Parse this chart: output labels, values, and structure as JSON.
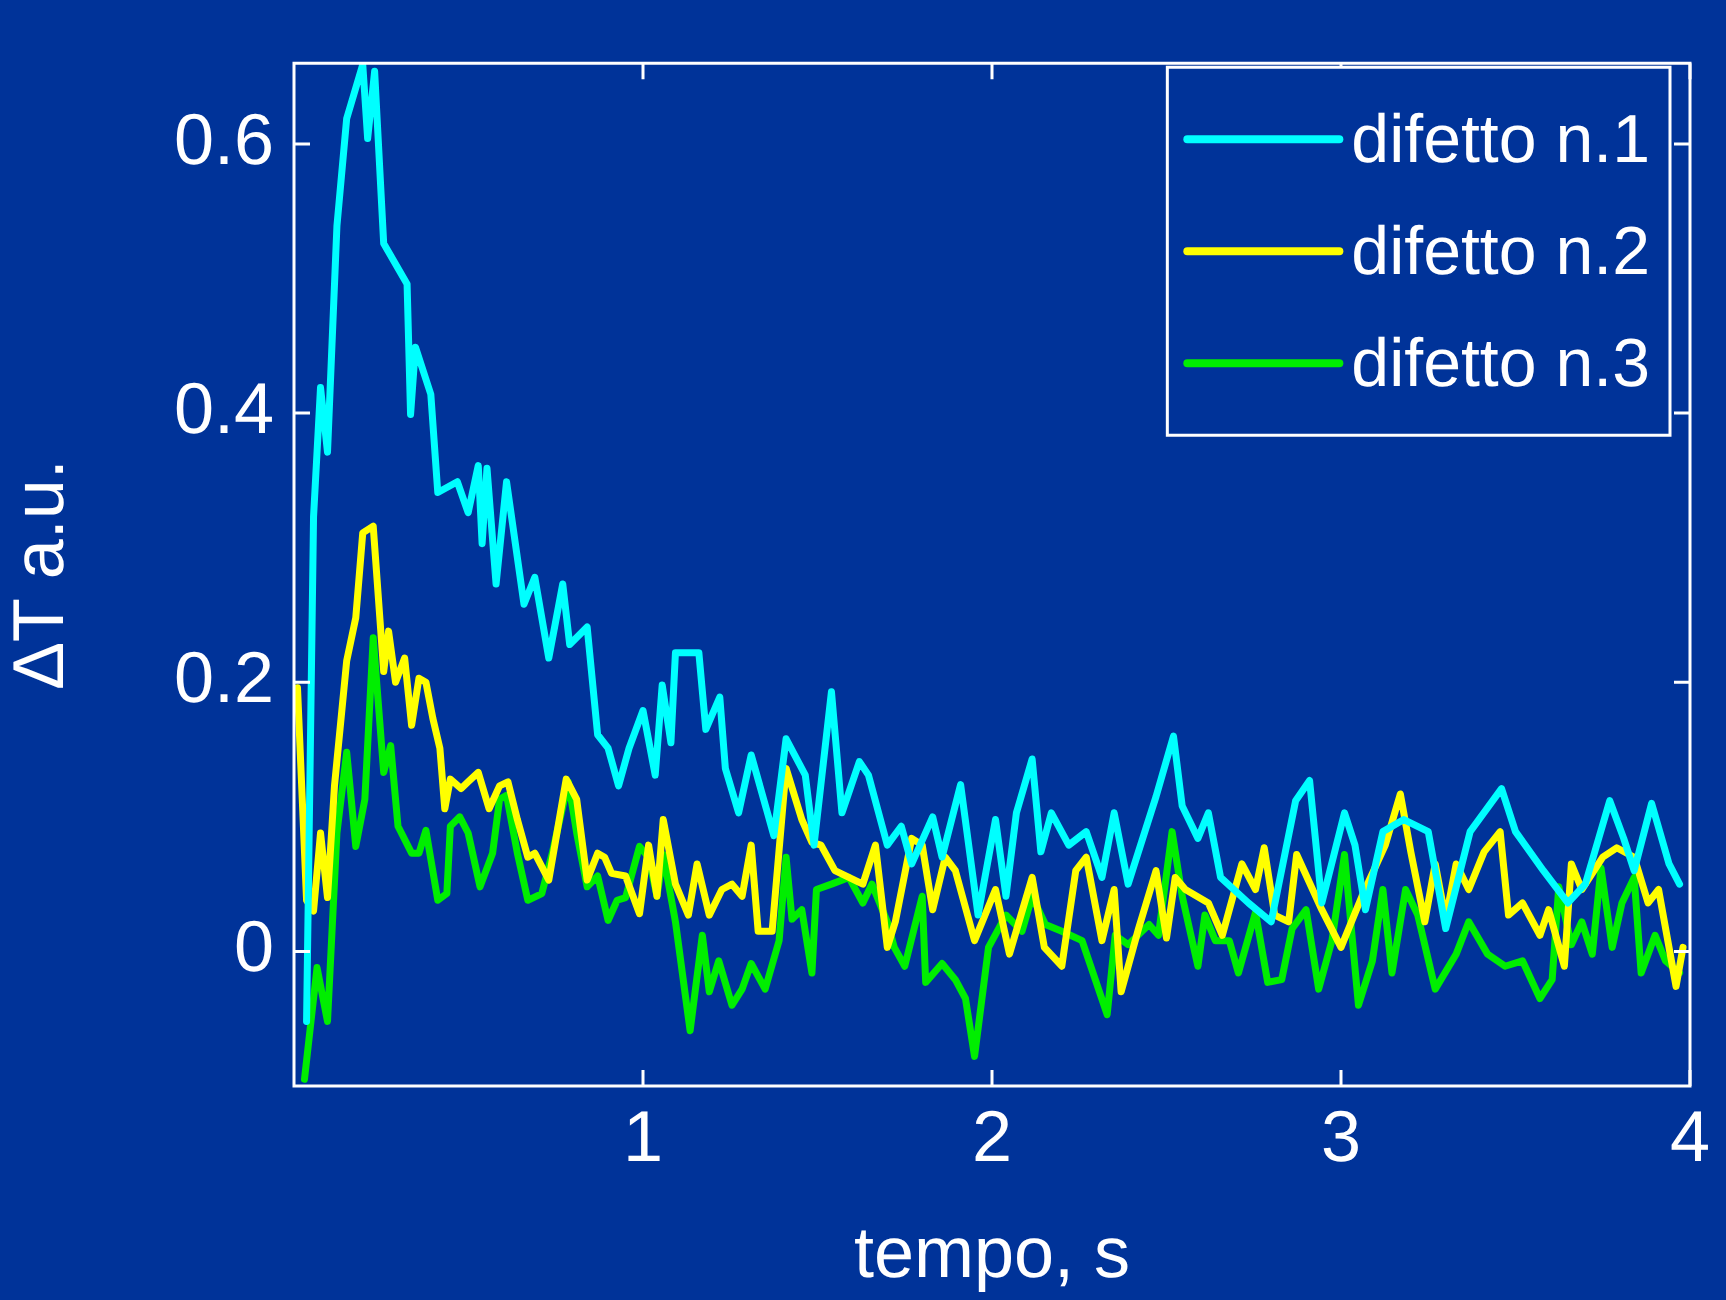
{
  "chart_data": {
    "type": "line",
    "xlabel": "tempo, s",
    "ylabel": "ΔT a.u.",
    "xlim": [
      0,
      4
    ],
    "ylim": [
      -0.1,
      0.66
    ],
    "xticks": [
      1,
      2,
      3,
      4
    ],
    "yticks": [
      0,
      0.2,
      0.4,
      0.6
    ],
    "grid": false,
    "legend": "top right",
    "marker": "none",
    "line_style": "solid",
    "series": [
      {
        "name": "difetto n.1",
        "color": "#00ffff",
        "x": [
          0.036,
          0.056,
          0.076,
          0.096,
          0.123,
          0.151,
          0.197,
          0.211,
          0.231,
          0.257,
          0.324,
          0.334,
          0.348,
          0.392,
          0.412,
          0.468,
          0.499,
          0.528,
          0.539,
          0.553,
          0.579,
          0.609,
          0.659,
          0.69,
          0.73,
          0.77,
          0.79,
          0.84,
          0.87,
          0.9,
          0.93,
          0.96,
          1.0,
          1.035,
          1.055,
          1.08,
          1.093,
          1.16,
          1.18,
          1.22,
          1.236,
          1.274,
          1.31,
          1.375,
          1.41,
          1.465,
          1.49,
          1.54,
          1.57,
          1.62,
          1.646,
          1.7,
          1.74,
          1.77,
          1.83,
          1.857,
          1.91,
          1.96,
          2.01,
          2.04,
          2.07,
          2.115,
          2.14,
          2.17,
          2.22,
          2.27,
          2.315,
          2.35,
          2.39,
          2.47,
          2.52,
          2.545,
          2.59,
          2.62,
          2.655,
          2.735,
          2.8,
          2.87,
          2.91,
          2.945,
          3.01,
          3.04,
          3.07,
          3.12,
          3.18,
          3.25,
          3.3,
          3.37,
          3.46,
          3.5,
          3.58,
          3.65,
          3.7,
          3.77,
          3.81,
          3.84,
          3.89,
          3.94,
          3.97
        ],
        "values": [
          -0.052,
          0.323,
          0.419,
          0.371,
          0.539,
          0.619,
          0.659,
          0.604,
          0.654,
          0.526,
          0.496,
          0.399,
          0.449,
          0.414,
          0.341,
          0.349,
          0.326,
          0.361,
          0.303,
          0.359,
          0.273,
          0.349,
          0.258,
          0.278,
          0.218,
          0.273,
          0.228,
          0.241,
          0.161,
          0.151,
          0.123,
          0.151,
          0.179,
          0.131,
          0.198,
          0.155,
          0.222,
          0.222,
          0.165,
          0.189,
          0.136,
          0.103,
          0.146,
          0.086,
          0.158,
          0.131,
          0.079,
          0.193,
          0.103,
          0.141,
          0.131,
          0.079,
          0.093,
          0.065,
          0.1,
          0.07,
          0.124,
          0.027,
          0.098,
          0.041,
          0.103,
          0.143,
          0.074,
          0.103,
          0.079,
          0.089,
          0.055,
          0.103,
          0.05,
          0.115,
          0.16,
          0.108,
          0.084,
          0.103,
          0.055,
          0.036,
          0.022,
          0.112,
          0.127,
          0.036,
          0.103,
          0.079,
          0.031,
          0.089,
          0.098,
          0.089,
          0.017,
          0.089,
          0.121,
          0.089,
          0.06,
          0.036,
          0.05,
          0.112,
          0.084,
          0.06,
          0.11,
          0.065,
          0.05
        ]
      },
      {
        "name": "difetto n.2",
        "color": "#ffff00",
        "x": [
          0.01,
          0.036,
          0.056,
          0.076,
          0.096,
          0.116,
          0.151,
          0.177,
          0.197,
          0.227,
          0.257,
          0.271,
          0.291,
          0.317,
          0.337,
          0.358,
          0.378,
          0.398,
          0.418,
          0.432,
          0.448,
          0.479,
          0.499,
          0.528,
          0.559,
          0.589,
          0.613,
          0.64,
          0.67,
          0.69,
          0.73,
          0.78,
          0.81,
          0.84,
          0.87,
          0.89,
          0.91,
          0.95,
          0.99,
          1.016,
          1.04,
          1.058,
          1.093,
          1.13,
          1.155,
          1.19,
          1.226,
          1.255,
          1.284,
          1.31,
          1.33,
          1.37,
          1.41,
          1.455,
          1.484,
          1.51,
          1.55,
          1.63,
          1.666,
          1.7,
          1.723,
          1.77,
          1.8,
          1.83,
          1.866,
          1.895,
          1.95,
          2.01,
          2.05,
          2.115,
          2.15,
          2.2,
          2.24,
          2.27,
          2.315,
          2.35,
          2.37,
          2.42,
          2.47,
          2.5,
          2.525,
          2.554,
          2.62,
          2.66,
          2.716,
          2.755,
          2.78,
          2.81,
          2.85,
          2.873,
          2.945,
          3.0,
          3.06,
          3.127,
          3.17,
          3.2,
          3.24,
          3.27,
          3.3,
          3.33,
          3.366,
          3.41,
          3.456,
          3.48,
          3.52,
          3.57,
          3.595,
          3.64,
          3.66,
          3.69,
          3.75,
          3.79,
          3.84,
          3.88,
          3.91,
          3.96,
          3.98
        ],
        "values": [
          0.196,
          0.038,
          0.03,
          0.088,
          0.04,
          0.123,
          0.216,
          0.248,
          0.311,
          0.316,
          0.208,
          0.238,
          0.2,
          0.218,
          0.168,
          0.203,
          0.2,
          0.173,
          0.151,
          0.106,
          0.128,
          0.121,
          0.126,
          0.133,
          0.106,
          0.123,
          0.126,
          0.098,
          0.07,
          0.073,
          0.053,
          0.128,
          0.113,
          0.053,
          0.073,
          0.07,
          0.058,
          0.056,
          0.028,
          0.079,
          0.041,
          0.098,
          0.05,
          0.027,
          0.065,
          0.027,
          0.046,
          0.05,
          0.041,
          0.079,
          0.015,
          0.015,
          0.136,
          0.098,
          0.081,
          0.079,
          0.06,
          0.05,
          0.079,
          0.003,
          0.022,
          0.084,
          0.079,
          0.031,
          0.07,
          0.06,
          0.008,
          0.046,
          -0.002,
          0.055,
          0.003,
          -0.011,
          0.06,
          0.07,
          0.008,
          0.046,
          -0.03,
          0.017,
          0.06,
          0.01,
          0.055,
          0.046,
          0.036,
          0.012,
          0.065,
          0.046,
          0.077,
          0.027,
          0.022,
          0.072,
          0.031,
          0.003,
          0.041,
          0.079,
          0.117,
          0.074,
          0.022,
          0.065,
          0.024,
          0.065,
          0.046,
          0.074,
          0.089,
          0.027,
          0.036,
          0.012,
          0.031,
          -0.011,
          0.065,
          0.046,
          0.07,
          0.077,
          0.07,
          0.036,
          0.046,
          -0.026,
          0.003
        ]
      },
      {
        "name": "difetto n.3",
        "color": "#00ee00",
        "x": [
          0.03,
          0.066,
          0.096,
          0.123,
          0.151,
          0.177,
          0.203,
          0.227,
          0.257,
          0.277,
          0.298,
          0.337,
          0.358,
          0.378,
          0.412,
          0.438,
          0.448,
          0.475,
          0.499,
          0.533,
          0.569,
          0.589,
          0.609,
          0.64,
          0.67,
          0.71,
          0.74,
          0.786,
          0.81,
          0.84,
          0.87,
          0.9,
          0.926,
          0.95,
          0.99,
          1.016,
          1.04,
          1.058,
          1.093,
          1.135,
          1.17,
          1.19,
          1.217,
          1.255,
          1.284,
          1.31,
          1.35,
          1.39,
          1.41,
          1.427,
          1.455,
          1.484,
          1.497,
          1.54,
          1.59,
          1.63,
          1.656,
          1.7,
          1.72,
          1.75,
          1.8,
          1.81,
          1.857,
          1.895,
          1.924,
          1.95,
          1.99,
          2.04,
          2.086,
          2.115,
          2.153,
          2.2,
          2.258,
          2.296,
          2.33,
          2.353,
          2.39,
          2.45,
          2.477,
          2.516,
          2.545,
          2.59,
          2.61,
          2.64,
          2.68,
          2.706,
          2.755,
          2.79,
          2.83,
          2.86,
          2.9,
          2.936,
          2.974,
          3.01,
          3.05,
          3.09,
          3.12,
          3.146,
          3.185,
          3.22,
          3.27,
          3.33,
          3.366,
          3.42,
          3.47,
          3.52,
          3.57,
          3.605,
          3.624,
          3.66,
          3.69,
          3.72,
          3.745,
          3.777,
          3.805,
          3.84,
          3.86,
          3.9,
          3.93,
          3.97
        ],
        "values": [
          -0.095,
          -0.012,
          -0.052,
          0.088,
          0.148,
          0.078,
          0.113,
          0.233,
          0.133,
          0.153,
          0.093,
          0.073,
          0.073,
          0.09,
          0.038,
          0.043,
          0.093,
          0.1,
          0.088,
          0.048,
          0.073,
          0.113,
          0.116,
          0.073,
          0.038,
          0.043,
          0.073,
          0.126,
          0.088,
          0.048,
          0.056,
          0.023,
          0.038,
          0.04,
          0.078,
          0.07,
          0.041,
          0.072,
          0.022,
          -0.059,
          0.012,
          -0.03,
          -0.007,
          -0.04,
          -0.028,
          -0.009,
          -0.028,
          0.008,
          0.07,
          0.024,
          0.031,
          -0.016,
          0.046,
          0.05,
          0.055,
          0.036,
          0.05,
          0.022,
          0.003,
          -0.011,
          0.041,
          -0.023,
          -0.009,
          -0.021,
          -0.035,
          -0.078,
          0.003,
          0.027,
          0.015,
          0.041,
          0.02,
          0.015,
          0.008,
          -0.021,
          -0.047,
          0.012,
          0.005,
          0.02,
          0.012,
          0.089,
          0.041,
          -0.011,
          0.027,
          0.008,
          0.008,
          -0.016,
          0.029,
          -0.023,
          -0.021,
          0.017,
          0.031,
          -0.028,
          0.008,
          0.072,
          -0.04,
          -0.007,
          0.046,
          -0.016,
          0.046,
          0.027,
          -0.028,
          -0.002,
          0.022,
          -0.002,
          -0.011,
          -0.007,
          -0.035,
          -0.021,
          0.048,
          0.005,
          0.022,
          -0.002,
          0.062,
          0.003,
          0.036,
          0.055,
          -0.016,
          0.012,
          -0.007,
          -0.016
        ]
      }
    ]
  }
}
